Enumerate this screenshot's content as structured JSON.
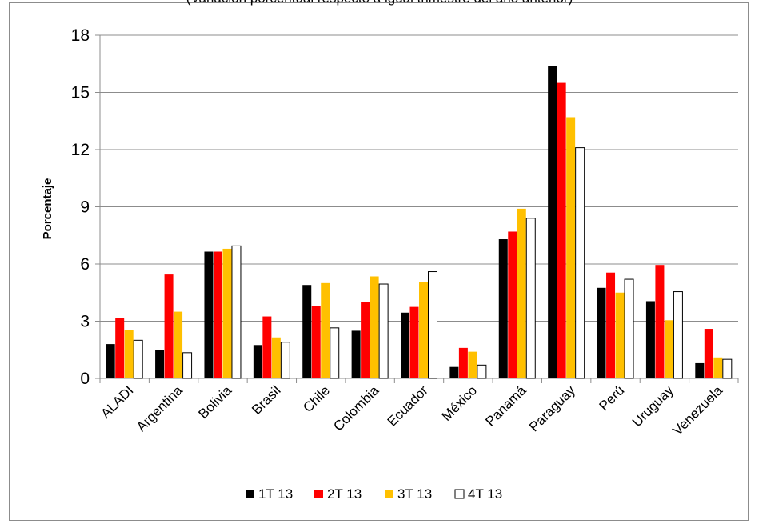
{
  "chart_data": {
    "type": "bar",
    "title": "(Variación porcentual respecto a igual trimestre del año anterior)",
    "ylabel": "Porcentaje",
    "xlabel": "",
    "ylim": [
      0,
      18
    ],
    "yticks": [
      0,
      3,
      6,
      9,
      12,
      15,
      18
    ],
    "grid": true,
    "legend_position": "bottom",
    "categories": [
      "ALADI",
      "Argentina",
      "Bolivia",
      "Brasil",
      "Chile",
      "Colombia",
      "Ecuador",
      "México",
      "Panamá",
      "Paraguay",
      "Perú",
      "Uruguay",
      "Venezuela"
    ],
    "series": [
      {
        "name": "1T 13",
        "color": "#000000",
        "values": [
          1.8,
          1.5,
          6.65,
          1.75,
          4.9,
          2.5,
          3.45,
          0.6,
          7.3,
          16.4,
          4.75,
          4.05,
          0.8
        ]
      },
      {
        "name": "2T 13",
        "color": "#ff0000",
        "values": [
          3.15,
          5.45,
          6.65,
          3.25,
          3.8,
          4.0,
          3.75,
          1.6,
          7.7,
          15.5,
          5.55,
          5.95,
          2.6
        ]
      },
      {
        "name": "3T 13",
        "color": "#ffc000",
        "values": [
          2.55,
          3.5,
          6.8,
          2.15,
          5.0,
          5.35,
          5.05,
          1.4,
          8.9,
          13.7,
          4.5,
          3.05,
          1.1
        ]
      },
      {
        "name": "4T 13",
        "color": "#ffffff",
        "values": [
          2.0,
          1.35,
          6.95,
          1.9,
          2.65,
          4.95,
          5.6,
          0.7,
          8.4,
          12.1,
          5.2,
          4.55,
          1.0
        ]
      }
    ]
  }
}
